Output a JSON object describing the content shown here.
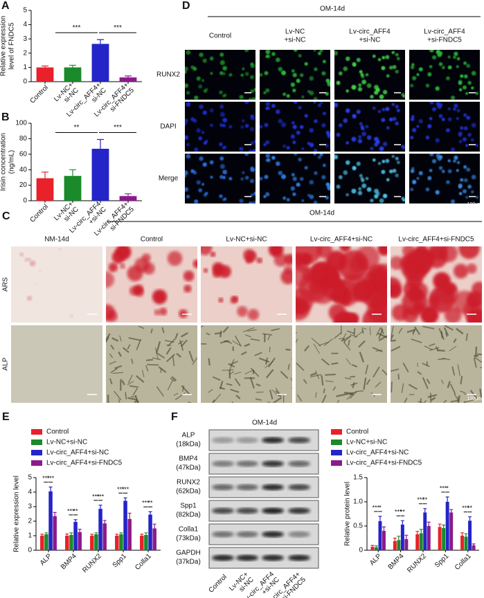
{
  "chart_data": [
    {
      "type": "bar",
      "label": "A",
      "ylabel": [
        "Relative expression",
        "level of FNDC5"
      ],
      "categories": [
        [
          "Control"
        ],
        [
          "Lv-NC+",
          "si-NC"
        ],
        [
          "Lv-circ_AFF4+",
          "si-NC"
        ],
        [
          "Lv-circ_AFF4+",
          "si-FNDC5"
        ]
      ],
      "values": [
        1.0,
        1.0,
        2.65,
        0.3
      ],
      "errors": [
        0.1,
        0.15,
        0.3,
        0.1
      ],
      "colors": [
        "#e8212a",
        "#1a8a2a",
        "#2424c8",
        "#8b1a8b"
      ],
      "annotations": [
        "***",
        "***"
      ],
      "ylim": [
        0,
        5
      ],
      "yticks": [
        0,
        1,
        2,
        3,
        4,
        5
      ]
    },
    {
      "type": "bar",
      "label": "B",
      "ylabel": [
        "Irisin concentration",
        "(ng/mL)"
      ],
      "categories": [
        [
          "Control"
        ],
        [
          "Lv-NC+",
          "si-NC"
        ],
        [
          "Lv-circ_AFF4",
          "+si-NC"
        ],
        [
          "Lv-circ_AFF4+",
          "si-FNDC5"
        ]
      ],
      "values": [
        29,
        32,
        67,
        6
      ],
      "errors": [
        8,
        8,
        12,
        3
      ],
      "colors": [
        "#e8212a",
        "#1a8a2a",
        "#2424c8",
        "#8b1a8b"
      ],
      "annotations": [
        "**",
        "***"
      ],
      "ylim": [
        0,
        100
      ],
      "yticks": [
        0,
        20,
        40,
        60,
        80,
        100
      ]
    },
    {
      "type": "grouped-bar",
      "label": "E",
      "ylabel": "Relative expression level",
      "categories": [
        "ALP",
        "BMP4",
        "RUNX2",
        "Spp1",
        "Colla1"
      ],
      "series": [
        {
          "name": "Control",
          "color": "#e8212a",
          "values": [
            1.0,
            1.0,
            1.0,
            1.0,
            1.0
          ],
          "errors": [
            0.1,
            0.12,
            0.1,
            0.1,
            0.1
          ]
        },
        {
          "name": "Lv-NC+si-NC",
          "color": "#1a8a2a",
          "values": [
            1.1,
            1.05,
            1.1,
            1.1,
            1.05
          ],
          "errors": [
            0.1,
            0.15,
            0.1,
            0.1,
            0.15
          ]
        },
        {
          "name": "Lv-circ_AFF4+si-NC",
          "color": "#2424c8",
          "values": [
            4.05,
            1.95,
            2.85,
            3.4,
            2.45
          ],
          "errors": [
            0.3,
            0.15,
            0.25,
            0.2,
            0.2
          ]
        },
        {
          "name": "Lv-circ_AFF4+si-FNDC5",
          "color": "#8b1a8b",
          "values": [
            2.35,
            1.25,
            1.85,
            2.15,
            1.5
          ],
          "errors": [
            0.25,
            0.2,
            0.2,
            0.4,
            0.3
          ]
        }
      ],
      "annotations": [
        [
          "***",
          "***"
        ],
        [
          "***",
          "**"
        ],
        [
          "***",
          "***"
        ],
        [
          "***",
          "***"
        ],
        [
          "***",
          "**"
        ]
      ],
      "ylim": [
        0,
        5
      ],
      "yticks": [
        0,
        1,
        2,
        3,
        4,
        5
      ],
      "legend": true
    },
    {
      "type": "grouped-bar",
      "ylabel": "Relative protein level",
      "categories": [
        "ALP",
        "BMP4",
        "RUNX2",
        "Spp1",
        "Colla1"
      ],
      "series": [
        {
          "name": "Control",
          "color": "#e8212a",
          "values": [
            0.07,
            0.19,
            0.33,
            0.48,
            0.3
          ],
          "errors": [
            0.03,
            0.06,
            0.06,
            0.06,
            0.06
          ]
        },
        {
          "name": "Lv-NC+si-NC",
          "color": "#1a8a2a",
          "values": [
            0.06,
            0.21,
            0.35,
            0.46,
            0.28
          ],
          "errors": [
            0.03,
            0.08,
            0.08,
            0.06,
            0.06
          ]
        },
        {
          "name": "Lv-circ_AFF4+si-NC",
          "color": "#2424c8",
          "values": [
            0.6,
            0.53,
            0.78,
            1.0,
            0.61
          ],
          "errors": [
            0.1,
            0.08,
            0.08,
            0.1,
            0.08
          ]
        },
        {
          "name": "Lv-circ_AFF4+si-FNDC5",
          "color": "#8b1a8b",
          "values": [
            0.4,
            0.23,
            0.5,
            0.78,
            0.1
          ],
          "errors": [
            0.08,
            0.08,
            0.08,
            0.06,
            0.03
          ]
        }
      ],
      "annotations": [
        [
          "***",
          "*"
        ],
        [
          "***",
          "**"
        ],
        [
          "***",
          "**"
        ],
        [
          "***",
          "*"
        ],
        [
          "***",
          "**"
        ]
      ],
      "ylim": [
        0,
        1.5
      ],
      "yticks": [
        0,
        0.5,
        {
          "value": 1,
          "label": "1.0"
        },
        1.5
      ],
      "legend": true
    }
  ],
  "panel_d": {
    "label": "D",
    "group": "OM-14d",
    "columns": [
      [
        "Control"
      ],
      [
        "Lv-NC",
        "+si-NC"
      ],
      [
        "Lv-circ_AFF4",
        "+si-NC"
      ],
      [
        "Lv-circ_AFF4",
        "+si-FNDC5"
      ]
    ],
    "rows": [
      "RUNX2",
      "DAPI",
      "Merge"
    ],
    "scale_bar": "100μm"
  },
  "panel_c": {
    "label": "C",
    "group": "OM-14d",
    "columns": [
      "NM-14d",
      "Control",
      "Lv-NC+si-NC",
      "Lv-circ_AFF4+si-NC",
      "Lv-circ_AFF4+si-FNDC5"
    ],
    "rows": [
      "ARS",
      "ALP"
    ],
    "scale_bar": "100μm"
  },
  "panel_f_blot": {
    "label": "F",
    "group": "OM-14d",
    "proteins": [
      [
        "ALP",
        "(18kDa)"
      ],
      [
        "BMP4",
        "(47kDa)"
      ],
      [
        "RUNX2",
        "(62kDa)"
      ],
      [
        "Spp1",
        "(82kDa)"
      ],
      [
        "Colla1",
        "(73kDa)"
      ],
      [
        "GAPDH",
        "(37kDa)"
      ]
    ],
    "lanes": [
      [
        "Control"
      ],
      [
        "Lv-NC+",
        "si-NC"
      ],
      [
        "Lv-circ_AFF4",
        "+si-NC"
      ],
      [
        "Lv-circ_AFF4+",
        "si-FNDC5"
      ]
    ]
  }
}
